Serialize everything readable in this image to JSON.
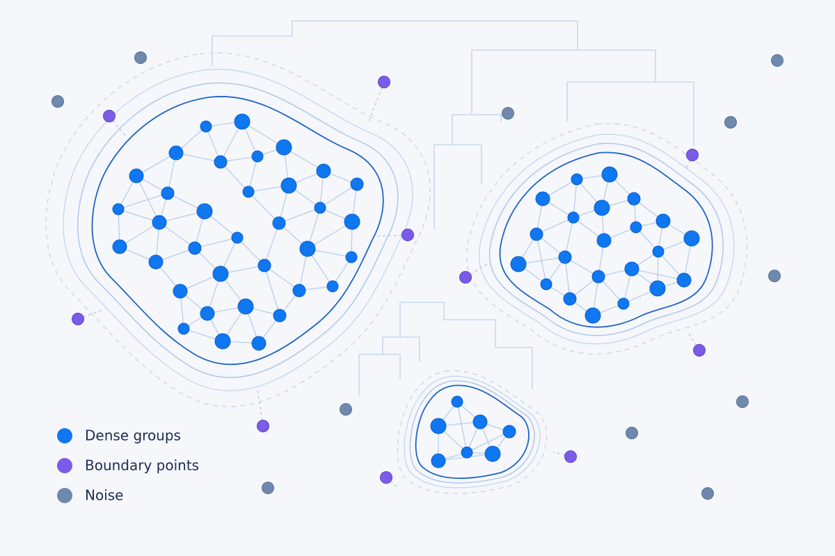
{
  "legend": {
    "items": [
      {
        "label": "Dense groups"
      },
      {
        "label": "Boundary points"
      },
      {
        "label": "Noise"
      }
    ]
  }
}
